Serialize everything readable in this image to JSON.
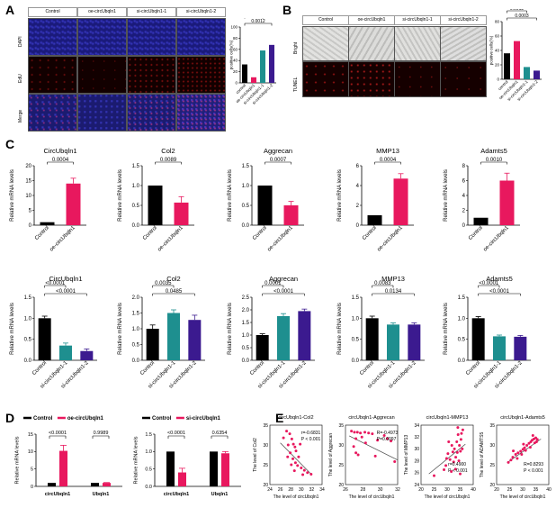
{
  "panels": {
    "A": {
      "label": "A",
      "column_headers": [
        "Control",
        "oe-circUbqln1",
        "si-circUbqln1-1",
        "si-circUbqln1-2"
      ],
      "row_labels": [
        "DAPI",
        "EdU",
        "Merge"
      ],
      "colors": {
        "dapi": "#1a1a7a",
        "edu": "#120000",
        "merge": "#1b1b70"
      }
    },
    "B": {
      "label": "B",
      "column_headers": [
        "Control",
        "oe-circUbqln1",
        "si-circUbqln1-1",
        "si-circUbqln1-2"
      ],
      "row_labels": [
        "Bright",
        "TUNEL"
      ],
      "colors": {
        "bright": "#d8d8d6",
        "tunel": "#150000"
      }
    },
    "C": {
      "label": "C"
    },
    "D": {
      "label": "D"
    },
    "E": {
      "label": "E"
    }
  },
  "chart_data": [
    {
      "id": "A-bar",
      "type": "bar",
      "ylabel": "positive cells(%)",
      "ylim": [
        0,
        100
      ],
      "yticks": [
        "0",
        "20",
        "40",
        "60",
        "80",
        "100"
      ],
      "categories": [
        "control",
        "oe-circUbqln1",
        "si-circUbqln1-1",
        "si-circUbqln1-2"
      ],
      "values": [
        33,
        10,
        58,
        68
      ],
      "colors": [
        "#000000",
        "#e8185e",
        "#1e8f8f",
        "#3b1a8f"
      ],
      "comparisons": [
        {
          "label": "0.0406",
          "from": 0,
          "to": 1
        },
        {
          "label": "0.0103",
          "from": 0,
          "to": 2
        },
        {
          "label": "0.0012",
          "from": 0,
          "to": 3
        }
      ]
    },
    {
      "id": "B-bar",
      "type": "bar",
      "ylabel": "positive cells(%)",
      "ylim": [
        0,
        80
      ],
      "yticks": [
        "0",
        "20",
        "40",
        "60",
        "80"
      ],
      "categories": [
        "control",
        "oe-circUbqln1",
        "si-circUbqln1-1",
        "si-circUbqln1-2"
      ],
      "values": [
        36,
        53,
        17,
        12
      ],
      "colors": [
        "#000000",
        "#e8185e",
        "#1e8f8f",
        "#3b1a8f"
      ],
      "comparisons": [
        {
          "label": "0.0006",
          "from": 0,
          "to": 1
        },
        {
          "label": "0.0012",
          "from": 0,
          "to": 2
        },
        {
          "label": "0.0003",
          "from": 0,
          "to": 3
        }
      ]
    },
    {
      "id": "C-top-1",
      "type": "bar",
      "title": "CircUbqln1",
      "ylabel": "Relative mRNA levels",
      "ylim": [
        0,
        20
      ],
      "yticks": [
        "0",
        "5",
        "10",
        "15",
        "20"
      ],
      "categories": [
        "Control",
        "oe-circUbqln1"
      ],
      "values": [
        1,
        14
      ],
      "errors": [
        0,
        1.8
      ],
      "colors": [
        "#000000",
        "#e8185e"
      ],
      "comparisons": [
        {
          "label": "0.0004",
          "from": 0,
          "to": 1
        }
      ]
    },
    {
      "id": "C-top-2",
      "type": "bar",
      "title": "Col2",
      "ylabel": "Relative mRNA levels",
      "ylim": [
        0,
        1.5
      ],
      "yticks": [
        "0.0",
        "0.5",
        "1.0",
        "1.5"
      ],
      "categories": [
        "Control",
        "oe-circUbqln1"
      ],
      "values": [
        1.0,
        0.57
      ],
      "errors": [
        0,
        0.15
      ],
      "colors": [
        "#000000",
        "#e8185e"
      ],
      "comparisons": [
        {
          "label": "0.0089",
          "from": 0,
          "to": 1
        }
      ]
    },
    {
      "id": "C-top-3",
      "type": "bar",
      "title": "Aggrecan",
      "ylabel": "Relative mRNA levels",
      "ylim": [
        0,
        1.5
      ],
      "yticks": [
        "0.0",
        "0.5",
        "1.0",
        "1.5"
      ],
      "categories": [
        "Control",
        "oe-circUbqln1"
      ],
      "values": [
        1.0,
        0.5
      ],
      "errors": [
        0,
        0.1
      ],
      "colors": [
        "#000000",
        "#e8185e"
      ],
      "comparisons": [
        {
          "label": "0.0007",
          "from": 0,
          "to": 1
        }
      ]
    },
    {
      "id": "C-top-4",
      "type": "bar",
      "title": "MMP13",
      "ylabel": "Relative mRNA levels",
      "ylim": [
        0,
        6
      ],
      "yticks": [
        "0",
        "2",
        "4",
        "6"
      ],
      "categories": [
        "Control",
        "oe-circUbqln1"
      ],
      "values": [
        1.0,
        4.7
      ],
      "errors": [
        0,
        0.5
      ],
      "colors": [
        "#000000",
        "#e8185e"
      ],
      "comparisons": [
        {
          "label": "0.0004",
          "from": 0,
          "to": 1
        }
      ]
    },
    {
      "id": "C-top-5",
      "type": "bar",
      "title": "Adamts5",
      "ylabel": "Relative mRNA levels",
      "ylim": [
        0,
        8
      ],
      "yticks": [
        "0",
        "2",
        "4",
        "6",
        "8"
      ],
      "categories": [
        "Control",
        "oe-circUbqln1"
      ],
      "values": [
        1.0,
        6.0
      ],
      "errors": [
        0,
        1.0
      ],
      "colors": [
        "#000000",
        "#e8185e"
      ],
      "comparisons": [
        {
          "label": "0.0010",
          "from": 0,
          "to": 1
        }
      ]
    },
    {
      "id": "C-bot-1",
      "type": "bar",
      "title": "CircUbqln1",
      "ylabel": "Relative mRNA levels",
      "ylim": [
        0,
        1.5
      ],
      "yticks": [
        "0.0",
        "0.5",
        "1.0",
        "1.5"
      ],
      "categories": [
        "Control",
        "si-circUbqln1-1",
        "si-circUbqln1-2"
      ],
      "values": [
        1.0,
        0.35,
        0.22
      ],
      "errors": [
        0.05,
        0.06,
        0.05
      ],
      "colors": [
        "#000000",
        "#1e8f8f",
        "#3b1a8f"
      ],
      "comparisons": [
        {
          "label": "<0.0001",
          "from": 0,
          "to": 1
        },
        {
          "label": "<0.0001",
          "from": 0,
          "to": 2
        }
      ]
    },
    {
      "id": "C-bot-2",
      "type": "bar",
      "title": "Col2",
      "ylabel": "Relative mRNA levels",
      "ylim": [
        0,
        2.0
      ],
      "yticks": [
        "0.0",
        "0.5",
        "1.0",
        "1.5",
        "2.0"
      ],
      "categories": [
        "Control",
        "si-circUbqln1-1",
        "si-circUbqln1-2"
      ],
      "values": [
        1.0,
        1.5,
        1.28
      ],
      "errors": [
        0.12,
        0.1,
        0.15
      ],
      "colors": [
        "#000000",
        "#1e8f8f",
        "#3b1a8f"
      ],
      "comparisons": [
        {
          "label": "0.0035",
          "from": 0,
          "to": 1
        },
        {
          "label": "0.0485",
          "from": 0,
          "to": 2
        }
      ]
    },
    {
      "id": "C-bot-3",
      "type": "bar",
      "title": "Aggrecan",
      "ylabel": "Relative mRNA levels",
      "ylim": [
        0,
        2.5
      ],
      "yticks": [
        "0.0",
        "0.5",
        "1.0",
        "1.5",
        "2.0",
        "2.5"
      ],
      "categories": [
        "Control",
        "si-circUbqln1-1",
        "si-circUbqln1-2"
      ],
      "values": [
        1.0,
        1.75,
        1.95
      ],
      "errors": [
        0.05,
        0.1,
        0.08
      ],
      "colors": [
        "#000000",
        "#1e8f8f",
        "#3b1a8f"
      ],
      "comparisons": [
        {
          "label": "0.0001",
          "from": 0,
          "to": 1
        },
        {
          "label": "<0.0001",
          "from": 0,
          "to": 2
        }
      ]
    },
    {
      "id": "C-bot-4",
      "type": "bar",
      "title": "MMP13",
      "ylabel": "Relative mRNA levels",
      "ylim": [
        0,
        1.5
      ],
      "yticks": [
        "0.0",
        "0.5",
        "1.0",
        "1.5"
      ],
      "categories": [
        "Control",
        "si-circUbqln1-1",
        "si-circUbqln1-2"
      ],
      "values": [
        1.0,
        0.85,
        0.85
      ],
      "errors": [
        0.05,
        0.04,
        0.04
      ],
      "colors": [
        "#000000",
        "#1e8f8f",
        "#3b1a8f"
      ],
      "comparisons": [
        {
          "label": "0.0083",
          "from": 0,
          "to": 1
        },
        {
          "label": "0.0134",
          "from": 0,
          "to": 2
        }
      ]
    },
    {
      "id": "C-bot-5",
      "type": "bar",
      "title": "Adamts5",
      "ylabel": "Relative mRNA levels",
      "ylim": [
        0,
        1.5
      ],
      "yticks": [
        "0.0",
        "0.5",
        "1.0",
        "1.5"
      ],
      "categories": [
        "Control",
        "si-circUbqln1-1",
        "si-circUbqln1-2"
      ],
      "values": [
        1.0,
        0.57,
        0.56
      ],
      "errors": [
        0.04,
        0.03,
        0.03
      ],
      "colors": [
        "#000000",
        "#1e8f8f",
        "#3b1a8f"
      ],
      "comparisons": [
        {
          "label": "<0.0001",
          "from": 0,
          "to": 1
        },
        {
          "label": "<0.0001",
          "from": 0,
          "to": 2
        }
      ]
    },
    {
      "id": "D-1",
      "type": "bar",
      "ylabel": "Relative mRNA levels",
      "ylim": [
        0,
        15
      ],
      "yticks": [
        "0",
        "5",
        "10",
        "15"
      ],
      "categories": [
        "circUbqln1",
        "Ubqln1"
      ],
      "series": [
        {
          "name": "Control",
          "color": "#000000",
          "values": [
            1,
            1
          ],
          "errors": [
            0,
            0
          ]
        },
        {
          "name": "oe-circUbqln1",
          "color": "#e8185e",
          "values": [
            10.2,
            1.0
          ],
          "errors": [
            1.6,
            0.1
          ]
        }
      ],
      "comparisons": [
        {
          "label": "<0.0001",
          "category": 0
        },
        {
          "label": "0.9989",
          "category": 1
        }
      ]
    },
    {
      "id": "D-2",
      "type": "bar",
      "ylabel": "Relative mRNA levels",
      "ylim": [
        0,
        1.5
      ],
      "yticks": [
        "0.0",
        "0.5",
        "1.0",
        "1.5"
      ],
      "categories": [
        "circUbqln1",
        "Ubqln1"
      ],
      "series": [
        {
          "name": "Control",
          "color": "#000000",
          "values": [
            1.0,
            1.0
          ],
          "errors": [
            0,
            0
          ]
        },
        {
          "name": "si-circUbqln1",
          "color": "#e8185e",
          "values": [
            0.4,
            0.95
          ],
          "errors": [
            0.12,
            0.05
          ]
        }
      ],
      "comparisons": [
        {
          "label": "<0.0001",
          "category": 0
        },
        {
          "label": "0.6354",
          "category": 1
        }
      ]
    },
    {
      "id": "E-1",
      "type": "scatter",
      "title": "circUbqln1-Col2",
      "xlabel": "The level of circUbqln1",
      "ylabel": "The level of Col2",
      "xlim": [
        24,
        34
      ],
      "ylim": [
        20,
        35
      ],
      "xticks": [
        "24",
        "26",
        "28",
        "30",
        "32",
        "34"
      ],
      "yticks": [
        "20",
        "25",
        "30",
        "35"
      ],
      "stat": [
        "r=-0.6831",
        "P < 0.001"
      ],
      "color": "#e8185e",
      "line": [
        [
          26,
          30.5
        ],
        [
          32,
          22.5
        ]
      ],
      "points": [
        [
          27.2,
          33.5
        ],
        [
          27.8,
          32.8
        ],
        [
          28.2,
          31.5
        ],
        [
          28.5,
          30.2
        ],
        [
          27.5,
          30
        ],
        [
          28.8,
          29.5
        ],
        [
          29,
          28.5
        ],
        [
          27.9,
          28
        ],
        [
          28.4,
          26.5
        ],
        [
          28.9,
          25.5
        ],
        [
          29.3,
          24.8
        ],
        [
          30,
          24.2
        ],
        [
          30.6,
          23.6
        ],
        [
          31.2,
          23
        ],
        [
          31.9,
          22.6
        ],
        [
          27.4,
          27
        ],
        [
          28.1,
          25
        ],
        [
          29.5,
          27
        ],
        [
          30.3,
          22.5
        ],
        [
          26.6,
          31.8
        ],
        [
          29.8,
          30.2
        ],
        [
          28.7,
          23.5
        ]
      ]
    },
    {
      "id": "E-2",
      "type": "scatter",
      "title": "circUbqln1-Aggrecan",
      "xlabel": "The level of circUbqln1",
      "ylabel": "The level of Aggrecan",
      "xlim": [
        25,
        32
      ],
      "ylim": [
        20,
        35
      ],
      "xticks": [
        "26",
        "28",
        "30",
        "32"
      ],
      "yticks": [
        "20",
        "25",
        "30",
        "35"
      ],
      "stat": [
        "R=-0.4973",
        "P=0.0097"
      ],
      "color": "#e8185e",
      "line": [
        [
          25.5,
          32.3
        ],
        [
          32,
          26.2
        ]
      ],
      "points": [
        [
          25.8,
          33.5
        ],
        [
          26.2,
          33.2
        ],
        [
          26.6,
          33.2
        ],
        [
          27,
          33
        ],
        [
          27.6,
          33.2
        ],
        [
          28.1,
          33
        ],
        [
          28.6,
          32.8
        ],
        [
          26.4,
          31.6
        ],
        [
          27.2,
          32
        ],
        [
          26.4,
          28
        ],
        [
          26.7,
          27.5
        ],
        [
          26.1,
          29.6
        ],
        [
          29.3,
          31.2
        ],
        [
          30.2,
          32.4
        ],
        [
          30.6,
          31.6
        ],
        [
          31.1,
          31
        ],
        [
          27.7,
          30.5
        ],
        [
          31.6,
          25.8
        ],
        [
          29,
          27.2
        ]
      ]
    },
    {
      "id": "E-3",
      "type": "scatter",
      "title": "circUbqln1-MMP13",
      "xlabel": "The level of circUbqln1",
      "ylabel": "The level of MMP13",
      "xlim": [
        20,
        40
      ],
      "ylim": [
        24,
        34
      ],
      "xticks": [
        "20",
        "25",
        "30",
        "35",
        "40"
      ],
      "yticks": [
        "24",
        "26",
        "28",
        "30",
        "32",
        "34"
      ],
      "stat": [
        "r=0.4900",
        "P < 0.001"
      ],
      "color": "#e8185e",
      "line": [
        [
          23,
          25.8
        ],
        [
          37,
          30.8
        ]
      ],
      "points": [
        [
          25,
          25.5
        ],
        [
          28.8,
          26.5
        ],
        [
          29.5,
          27.2
        ],
        [
          30.3,
          29.2
        ],
        [
          31.1,
          28.2
        ],
        [
          31.6,
          26.2
        ],
        [
          32.2,
          29.5
        ],
        [
          32.8,
          30
        ],
        [
          33.3,
          28.6
        ],
        [
          33.7,
          31.2
        ],
        [
          34.2,
          32.4
        ],
        [
          34.7,
          30.6
        ],
        [
          35.1,
          29.6
        ],
        [
          35.5,
          32.6
        ],
        [
          36,
          33.2
        ],
        [
          34.5,
          28
        ],
        [
          33.2,
          26.6
        ],
        [
          31.8,
          30.6
        ],
        [
          30.6,
          31.2
        ],
        [
          35.8,
          30
        ],
        [
          35,
          25.8
        ],
        [
          32.5,
          27.8
        ],
        [
          34.1,
          33.6
        ],
        [
          29.8,
          28.4
        ],
        [
          33.9,
          29.4
        ],
        [
          35.3,
          31.6
        ]
      ]
    },
    {
      "id": "E-4",
      "type": "scatter",
      "title": "circUbqln1-Adamts5",
      "xlabel": "The level of circUbqln1",
      "ylabel": "The level of ADAMTS5",
      "xlim": [
        20,
        40
      ],
      "ylim": [
        20,
        35
      ],
      "xticks": [
        "20",
        "25",
        "30",
        "35",
        "40"
      ],
      "yticks": [
        "20",
        "25",
        "30",
        "35"
      ],
      "stat": [
        "R=0.8293",
        "P < 0.001"
      ],
      "color": "#e8185e",
      "line": [
        [
          24,
          25.5
        ],
        [
          37,
          31.5
        ]
      ],
      "points": [
        [
          24.5,
          25.6
        ],
        [
          25.5,
          26.2
        ],
        [
          26.2,
          26.9
        ],
        [
          27.3,
          27.6
        ],
        [
          28.2,
          28
        ],
        [
          29.2,
          28.4
        ],
        [
          30.1,
          28.9
        ],
        [
          30.7,
          29.3
        ],
        [
          31.6,
          29.9
        ],
        [
          32.4,
          30.4
        ],
        [
          33.1,
          30.8
        ],
        [
          33.6,
          31.2
        ],
        [
          34.3,
          31.5
        ],
        [
          35,
          31.8
        ],
        [
          35.6,
          31.4
        ],
        [
          34.6,
          30.5
        ],
        [
          32.9,
          29.4
        ],
        [
          31.1,
          28.6
        ],
        [
          29.6,
          27.6
        ],
        [
          27.9,
          26.6
        ],
        [
          26.4,
          28.5
        ],
        [
          33.9,
          32.4
        ],
        [
          35.3,
          30.8
        ],
        [
          30.3,
          30.2
        ]
      ]
    }
  ]
}
